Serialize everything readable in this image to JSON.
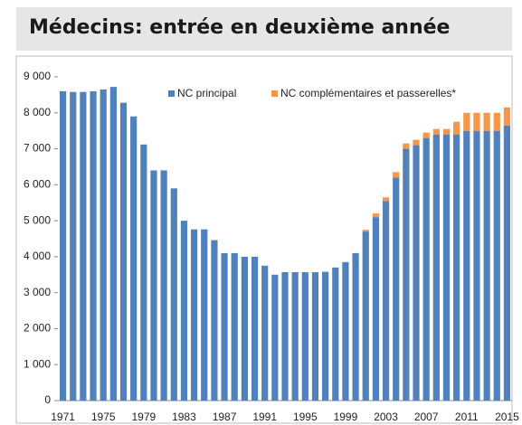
{
  "chart_data": {
    "type": "stacked_bar",
    "title": "Médecins: entrée en deuxième année",
    "categories": [
      "1971",
      null,
      null,
      null,
      "1975",
      null,
      null,
      null,
      "1979",
      null,
      null,
      null,
      "1983",
      null,
      null,
      null,
      "1987",
      null,
      null,
      null,
      "1991",
      null,
      null,
      null,
      "1995",
      null,
      null,
      null,
      "1999",
      null,
      null,
      null,
      "2003",
      null,
      null,
      null,
      "2007",
      null,
      null,
      null,
      "2011",
      null,
      null,
      null,
      "2015"
    ],
    "series": [
      {
        "name": "NC principal",
        "color": "#4f81bd",
        "values": [
          8600,
          8580,
          8580,
          8600,
          8650,
          8720,
          8280,
          7900,
          7120,
          6400,
          6400,
          5900,
          5000,
          4760,
          4760,
          4460,
          4100,
          4100,
          4000,
          4000,
          3750,
          3500,
          3570,
          3570,
          3570,
          3570,
          3580,
          3700,
          3850,
          4100,
          4700,
          5100,
          5550,
          6200,
          7000,
          7100,
          7300,
          7400,
          7400,
          7400,
          7500,
          7500,
          7500,
          7500,
          7650
        ]
      },
      {
        "name": "NC complémentaires et passerelles*",
        "color": "#f79646",
        "values": [
          0,
          0,
          0,
          0,
          0,
          0,
          0,
          0,
          0,
          0,
          0,
          0,
          0,
          0,
          0,
          0,
          0,
          0,
          0,
          0,
          0,
          0,
          0,
          0,
          0,
          0,
          0,
          0,
          0,
          0,
          50,
          100,
          100,
          150,
          150,
          150,
          150,
          150,
          150,
          350,
          500,
          500,
          500,
          500,
          500
        ]
      }
    ],
    "ylim": [
      0,
      9000
    ],
    "yticks": [
      0,
      {
        "value": 1000,
        "label": "1 000"
      },
      {
        "value": 2000,
        "label": "2 000"
      },
      {
        "value": 3000,
        "label": "3 000"
      },
      {
        "value": 4000,
        "label": "4 000"
      },
      {
        "value": 5000,
        "label": "5 000"
      },
      {
        "value": 6000,
        "label": "6 000"
      },
      {
        "value": 7000,
        "label": "7 000"
      },
      {
        "value": 8000,
        "label": "8 000"
      },
      {
        "value": 9000,
        "label": "9 000"
      }
    ],
    "grid": false
  }
}
